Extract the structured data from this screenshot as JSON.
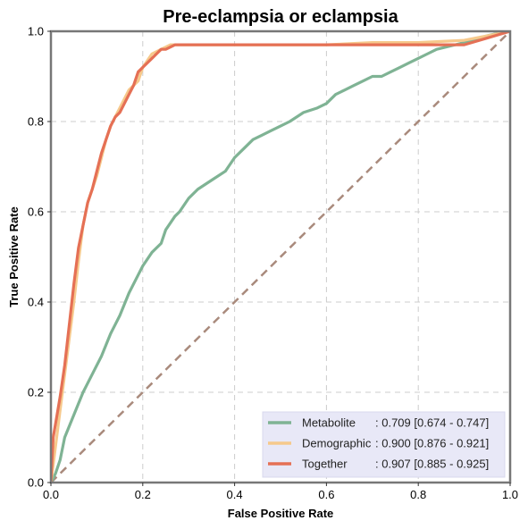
{
  "chart_data": {
    "type": "line",
    "title": "Pre-eclampsia or eclampsia",
    "xlabel": "False Positive Rate",
    "ylabel": "True Positive Rate",
    "xlim": [
      0,
      1
    ],
    "ylim": [
      0,
      1
    ],
    "xticks": [
      "0.0",
      "0.2",
      "0.4",
      "0.6",
      "0.8",
      "1.0"
    ],
    "yticks": [
      "0.0",
      "0.2",
      "0.4",
      "0.6",
      "0.8",
      "1.0"
    ],
    "grid": true,
    "legend_position": "lower-right",
    "chance_line": {
      "x": [
        0,
        1
      ],
      "y": [
        0,
        1
      ],
      "color": "#a98a7c"
    },
    "series": [
      {
        "name": "Metabolite",
        "label_name": "Metabolite",
        "label_stats": ": 0.709 [0.674 - 0.747]",
        "color": "#7fb394",
        "x": [
          0,
          0.01,
          0.02,
          0.03,
          0.05,
          0.07,
          0.09,
          0.11,
          0.13,
          0.15,
          0.17,
          0.19,
          0.2,
          0.22,
          0.24,
          0.25,
          0.27,
          0.28,
          0.3,
          0.32,
          0.35,
          0.38,
          0.4,
          0.42,
          0.44,
          0.46,
          0.48,
          0.5,
          0.52,
          0.55,
          0.58,
          0.6,
          0.62,
          0.64,
          0.66,
          0.68,
          0.7,
          0.72,
          0.74,
          0.76,
          0.78,
          0.8,
          0.82,
          0.84,
          0.86,
          0.88,
          0.9,
          0.92,
          0.95,
          0.97,
          1.0
        ],
        "y": [
          0,
          0.02,
          0.05,
          0.1,
          0.15,
          0.2,
          0.24,
          0.28,
          0.33,
          0.37,
          0.42,
          0.46,
          0.48,
          0.51,
          0.53,
          0.56,
          0.59,
          0.6,
          0.63,
          0.65,
          0.67,
          0.69,
          0.72,
          0.74,
          0.76,
          0.77,
          0.78,
          0.79,
          0.8,
          0.82,
          0.83,
          0.84,
          0.86,
          0.87,
          0.88,
          0.89,
          0.9,
          0.9,
          0.91,
          0.92,
          0.93,
          0.94,
          0.95,
          0.96,
          0.965,
          0.97,
          0.975,
          0.98,
          0.99,
          0.995,
          1.0
        ]
      },
      {
        "name": "Demographic",
        "label_name": "Demographic",
        "label_stats": ": 0.900 [0.876 - 0.921]",
        "color": "#f6c98c",
        "x": [
          0,
          0.01,
          0.02,
          0.03,
          0.04,
          0.05,
          0.06,
          0.07,
          0.08,
          0.09,
          0.1,
          0.11,
          0.12,
          0.13,
          0.14,
          0.15,
          0.16,
          0.17,
          0.18,
          0.19,
          0.2,
          0.22,
          0.24,
          0.26,
          0.28,
          0.3,
          0.4,
          0.5,
          0.6,
          0.7,
          0.8,
          0.9,
          0.95,
          1.0
        ],
        "y": [
          0,
          0.08,
          0.16,
          0.24,
          0.32,
          0.4,
          0.49,
          0.57,
          0.62,
          0.65,
          0.68,
          0.72,
          0.76,
          0.79,
          0.81,
          0.83,
          0.85,
          0.87,
          0.88,
          0.89,
          0.92,
          0.95,
          0.96,
          0.97,
          0.97,
          0.97,
          0.97,
          0.97,
          0.97,
          0.975,
          0.975,
          0.98,
          0.99,
          1.0
        ]
      },
      {
        "name": "Together",
        "label_name": "Together",
        "label_stats": ": 0.907 [0.885 - 0.925]",
        "color": "#e57055",
        "x": [
          0,
          0.005,
          0.01,
          0.02,
          0.03,
          0.04,
          0.05,
          0.06,
          0.07,
          0.08,
          0.09,
          0.1,
          0.11,
          0.12,
          0.13,
          0.14,
          0.15,
          0.16,
          0.17,
          0.18,
          0.19,
          0.2,
          0.21,
          0.22,
          0.23,
          0.24,
          0.25,
          0.26,
          0.27,
          0.3,
          0.4,
          0.5,
          0.6,
          0.7,
          0.8,
          0.9,
          0.95,
          1.0
        ],
        "y": [
          0,
          0.1,
          0.13,
          0.19,
          0.26,
          0.35,
          0.44,
          0.52,
          0.57,
          0.62,
          0.65,
          0.69,
          0.73,
          0.76,
          0.79,
          0.81,
          0.82,
          0.84,
          0.86,
          0.88,
          0.91,
          0.92,
          0.93,
          0.94,
          0.95,
          0.96,
          0.96,
          0.965,
          0.97,
          0.97,
          0.97,
          0.97,
          0.97,
          0.97,
          0.97,
          0.97,
          0.985,
          1.0
        ]
      }
    ]
  }
}
